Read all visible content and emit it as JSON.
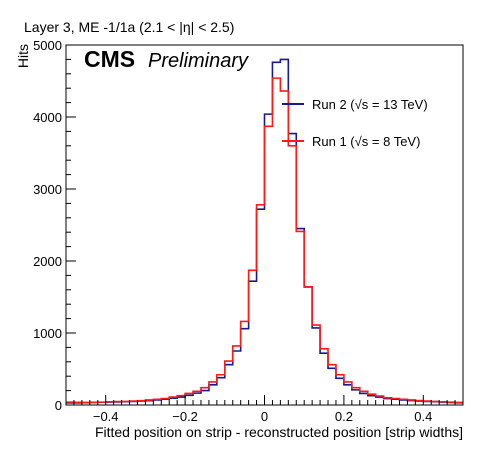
{
  "chart_data": {
    "type": "histogram-step",
    "title": "Layer 3, ME -1/1a (2.1 < |η| < 2.5)",
    "xlabel": "Fitted position on strip - reconstructed position [strip widths]",
    "ylabel": "Hits",
    "xlim": [
      -0.5,
      0.5
    ],
    "ylim": [
      0,
      5000
    ],
    "x_ticks": [
      -0.4,
      -0.2,
      0,
      0.2,
      0.4
    ],
    "x_tick_labels": [
      "−0.4",
      "−0.2",
      "0",
      "0.2",
      "0.4"
    ],
    "y_ticks": [
      0,
      1000,
      2000,
      3000,
      4000,
      5000
    ],
    "y_tick_labels": [
      "0",
      "1000",
      "2000",
      "3000",
      "4000",
      "5000"
    ],
    "grid": false,
    "legend_placement": "right-middle",
    "cms_label": "CMS",
    "cms_sublabel": "Preliminary",
    "bin_width": 0.02,
    "series": [
      {
        "name": "Run 2 (√s = 13 TeV)",
        "color": "#1a1a8c",
        "values": [
          30,
          30,
          32,
          35,
          38,
          40,
          42,
          45,
          50,
          55,
          60,
          70,
          80,
          95,
          110,
          135,
          165,
          200,
          280,
          380,
          560,
          750,
          1060,
          1720,
          2720,
          4040,
          4760,
          4800,
          3770,
          2450,
          1640,
          1070,
          720,
          510,
          370,
          280,
          210,
          160,
          130,
          110,
          90,
          80,
          70,
          62,
          55,
          50,
          45,
          40,
          35,
          30
        ]
      },
      {
        "name": "Run 1 (√s = 8 TeV)",
        "color": "#ff1a1a",
        "values": [
          40,
          38,
          36,
          38,
          40,
          45,
          48,
          50,
          55,
          60,
          70,
          80,
          90,
          110,
          130,
          160,
          190,
          240,
          320,
          420,
          610,
          820,
          1160,
          1870,
          2780,
          3870,
          4540,
          4360,
          3600,
          2410,
          1640,
          1110,
          780,
          560,
          420,
          320,
          240,
          190,
          150,
          125,
          100,
          90,
          80,
          70,
          62,
          55,
          50,
          45,
          40,
          35
        ]
      }
    ]
  }
}
